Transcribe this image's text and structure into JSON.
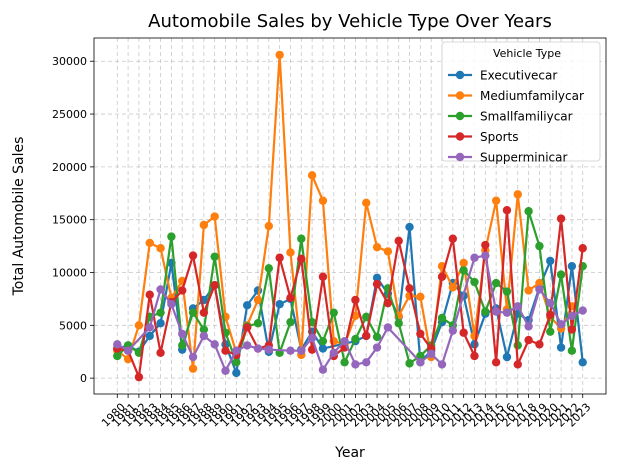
{
  "chart_data": {
    "type": "line",
    "title": "Automobile Sales by Vehicle Type Over Years",
    "xlabel": "Year",
    "ylabel": "Total Automobile Sales",
    "x": [
      1980,
      1981,
      1982,
      1983,
      1984,
      1985,
      1986,
      1987,
      1988,
      1989,
      1990,
      1991,
      1992,
      1993,
      1994,
      1995,
      1996,
      1997,
      1998,
      1999,
      2000,
      2001,
      2002,
      2003,
      2004,
      2005,
      2006,
      2007,
      2008,
      2009,
      2010,
      2011,
      2012,
      2013,
      2014,
      2015,
      2016,
      2017,
      2018,
      2019,
      2020,
      2021,
      2022,
      2023
    ],
    "ylim": [
      -1500,
      32200
    ],
    "yticks": [
      0,
      5000,
      10000,
      15000,
      20000,
      25000,
      30000
    ],
    "grid": true,
    "legend": {
      "title": "Vehicle Type",
      "position": "top-right"
    },
    "series": [
      {
        "name": "Executivecar",
        "color": "#1f77b4",
        "points": [
          [
            1980,
            2800
          ],
          [
            1981,
            3100
          ],
          [
            1982,
            2500
          ],
          [
            1983,
            4000
          ],
          [
            1984,
            5200
          ],
          [
            1985,
            10900
          ],
          [
            1986,
            2700
          ],
          [
            1987,
            6600
          ],
          [
            1988,
            7400
          ],
          [
            1989,
            8800
          ],
          [
            1990,
            3200
          ],
          [
            1991,
            500
          ],
          [
            1992,
            6900
          ],
          [
            1993,
            8300
          ],
          [
            1994,
            2500
          ],
          [
            1995,
            7000
          ],
          [
            1996,
            7500
          ],
          [
            1997,
            2700
          ],
          [
            1998,
            4400
          ],
          [
            1999,
            2800
          ],
          [
            2002,
            3500
          ],
          [
            2003,
            4000
          ],
          [
            2004,
            9500
          ],
          [
            2005,
            8000
          ],
          [
            2006,
            5800
          ],
          [
            2007,
            14300
          ],
          [
            2008,
            1500
          ],
          [
            2009,
            2600
          ],
          [
            2010,
            5300
          ],
          [
            2011,
            9000
          ],
          [
            2012,
            7800
          ],
          [
            2013,
            3200
          ],
          [
            2014,
            6100
          ],
          [
            2015,
            6600
          ],
          [
            2016,
            2000
          ],
          [
            2017,
            6100
          ],
          [
            2018,
            5500
          ],
          [
            2019,
            8600
          ],
          [
            2020,
            11100
          ],
          [
            2021,
            2900
          ],
          [
            2022,
            10600
          ],
          [
            2023,
            1500
          ]
        ]
      },
      {
        "name": "Mediumfamilycar",
        "color": "#ff7f0e",
        "points": [
          [
            1980,
            2600
          ],
          [
            1981,
            1800
          ],
          [
            1982,
            5000
          ],
          [
            1983,
            12800
          ],
          [
            1984,
            12300
          ],
          [
            1985,
            7600
          ],
          [
            1986,
            9200
          ],
          [
            1987,
            900
          ],
          [
            1988,
            14500
          ],
          [
            1989,
            15300
          ],
          [
            1990,
            5800
          ],
          [
            1991,
            2400
          ],
          [
            1992,
            5000
          ],
          [
            1993,
            7400
          ],
          [
            1994,
            14400
          ],
          [
            1995,
            30600
          ],
          [
            1996,
            11900
          ],
          [
            1997,
            2200
          ],
          [
            1998,
            19200
          ],
          [
            1999,
            16800
          ],
          [
            2000,
            3500
          ],
          [
            2001,
            3200
          ],
          [
            2002,
            5900
          ],
          [
            2003,
            16600
          ],
          [
            2004,
            12400
          ],
          [
            2005,
            12000
          ],
          [
            2006,
            5900
          ],
          [
            2007,
            7800
          ],
          [
            2008,
            7700
          ],
          [
            2009,
            2000
          ],
          [
            2010,
            10600
          ],
          [
            2011,
            8600
          ],
          [
            2012,
            10900
          ],
          [
            2013,
            4000
          ],
          [
            2014,
            12100
          ],
          [
            2015,
            16800
          ],
          [
            2016,
            6500
          ],
          [
            2017,
            17400
          ],
          [
            2018,
            8300
          ],
          [
            2019,
            9000
          ],
          [
            2020,
            5800
          ],
          [
            2021,
            4700
          ],
          [
            2022,
            6800
          ]
        ]
      },
      {
        "name": "Smallfamiliycar",
        "color": "#2ca02c",
        "points": [
          [
            1980,
            2100
          ],
          [
            1981,
            3100
          ],
          [
            1982,
            2400
          ],
          [
            1983,
            5800
          ],
          [
            1984,
            6200
          ],
          [
            1985,
            13400
          ],
          [
            1986,
            3100
          ],
          [
            1987,
            6200
          ],
          [
            1988,
            4600
          ],
          [
            1989,
            11500
          ],
          [
            1990,
            4300
          ],
          [
            1991,
            1500
          ],
          [
            1992,
            4900
          ],
          [
            1993,
            5200
          ],
          [
            1994,
            10400
          ],
          [
            1995,
            2400
          ],
          [
            1996,
            5300
          ],
          [
            1997,
            13200
          ],
          [
            1998,
            5300
          ],
          [
            1999,
            3500
          ],
          [
            2000,
            6200
          ],
          [
            2001,
            1500
          ],
          [
            2002,
            3700
          ],
          [
            2003,
            5800
          ],
          [
            2004,
            3900
          ],
          [
            2005,
            8500
          ],
          [
            2006,
            5200
          ],
          [
            2007,
            1400
          ],
          [
            2008,
            2100
          ],
          [
            2009,
            3100
          ],
          [
            2010,
            5700
          ],
          [
            2011,
            5000
          ],
          [
            2012,
            10200
          ],
          [
            2013,
            9100
          ],
          [
            2014,
            6300
          ],
          [
            2015,
            9000
          ],
          [
            2016,
            8200
          ],
          [
            2017,
            3100
          ],
          [
            2018,
            15800
          ],
          [
            2019,
            12500
          ],
          [
            2020,
            4400
          ],
          [
            2021,
            9800
          ],
          [
            2022,
            2600
          ],
          [
            2023,
            10600
          ]
        ]
      },
      {
        "name": "Sports",
        "color": "#d62728",
        "points": [
          [
            1980,
            2800
          ],
          [
            1981,
            2600
          ],
          [
            1982,
            100
          ],
          [
            1983,
            7900
          ],
          [
            1984,
            2400
          ],
          [
            1985,
            7200
          ],
          [
            1986,
            8300
          ],
          [
            1987,
            11600
          ],
          [
            1988,
            6200
          ],
          [
            1989,
            8800
          ],
          [
            1990,
            2600
          ],
          [
            1991,
            2200
          ],
          [
            1992,
            4800
          ],
          [
            1993,
            2800
          ],
          [
            1994,
            3100
          ],
          [
            1995,
            11400
          ],
          [
            1996,
            7600
          ],
          [
            1997,
            11300
          ],
          [
            1998,
            2700
          ],
          [
            1999,
            9600
          ],
          [
            2000,
            2100
          ],
          [
            2001,
            2900
          ],
          [
            2002,
            7400
          ],
          [
            2003,
            4000
          ],
          [
            2004,
            8900
          ],
          [
            2005,
            7100
          ],
          [
            2006,
            13000
          ],
          [
            2007,
            8500
          ],
          [
            2008,
            4200
          ],
          [
            2009,
            2800
          ],
          [
            2010,
            9600
          ],
          [
            2011,
            13200
          ],
          [
            2012,
            4300
          ],
          [
            2013,
            2100
          ],
          [
            2014,
            12600
          ],
          [
            2015,
            1500
          ],
          [
            2016,
            15900
          ],
          [
            2017,
            1300
          ],
          [
            2018,
            3600
          ],
          [
            2019,
            3200
          ],
          [
            2020,
            6000
          ],
          [
            2021,
            15100
          ],
          [
            2022,
            4600
          ],
          [
            2023,
            12300
          ]
        ]
      },
      {
        "name": "Supperminicar",
        "color": "#9467bd",
        "points": [
          [
            1980,
            3200
          ],
          [
            1981,
            2600
          ],
          [
            1983,
            4800
          ],
          [
            1984,
            8400
          ],
          [
            1985,
            7000
          ],
          [
            1986,
            4200
          ],
          [
            1987,
            2000
          ],
          [
            1988,
            4000
          ],
          [
            1989,
            3200
          ],
          [
            1990,
            700
          ],
          [
            1991,
            2600
          ],
          [
            1992,
            3100
          ],
          [
            1993,
            2800
          ],
          [
            1994,
            2700
          ],
          [
            1996,
            2600
          ],
          [
            1997,
            2600
          ],
          [
            1998,
            3800
          ],
          [
            1999,
            800
          ],
          [
            2000,
            2400
          ],
          [
            2001,
            3500
          ],
          [
            2002,
            1300
          ],
          [
            2003,
            1500
          ],
          [
            2004,
            2900
          ],
          [
            2005,
            4800
          ],
          [
            2008,
            1500
          ],
          [
            2009,
            2300
          ],
          [
            2010,
            1300
          ],
          [
            2011,
            4500
          ],
          [
            2013,
            11400
          ],
          [
            2014,
            11600
          ],
          [
            2015,
            6300
          ],
          [
            2016,
            6200
          ],
          [
            2017,
            6800
          ],
          [
            2018,
            4900
          ],
          [
            2019,
            8400
          ],
          [
            2020,
            7100
          ],
          [
            2021,
            5100
          ],
          [
            2022,
            5900
          ],
          [
            2023,
            6400
          ]
        ]
      }
    ]
  }
}
